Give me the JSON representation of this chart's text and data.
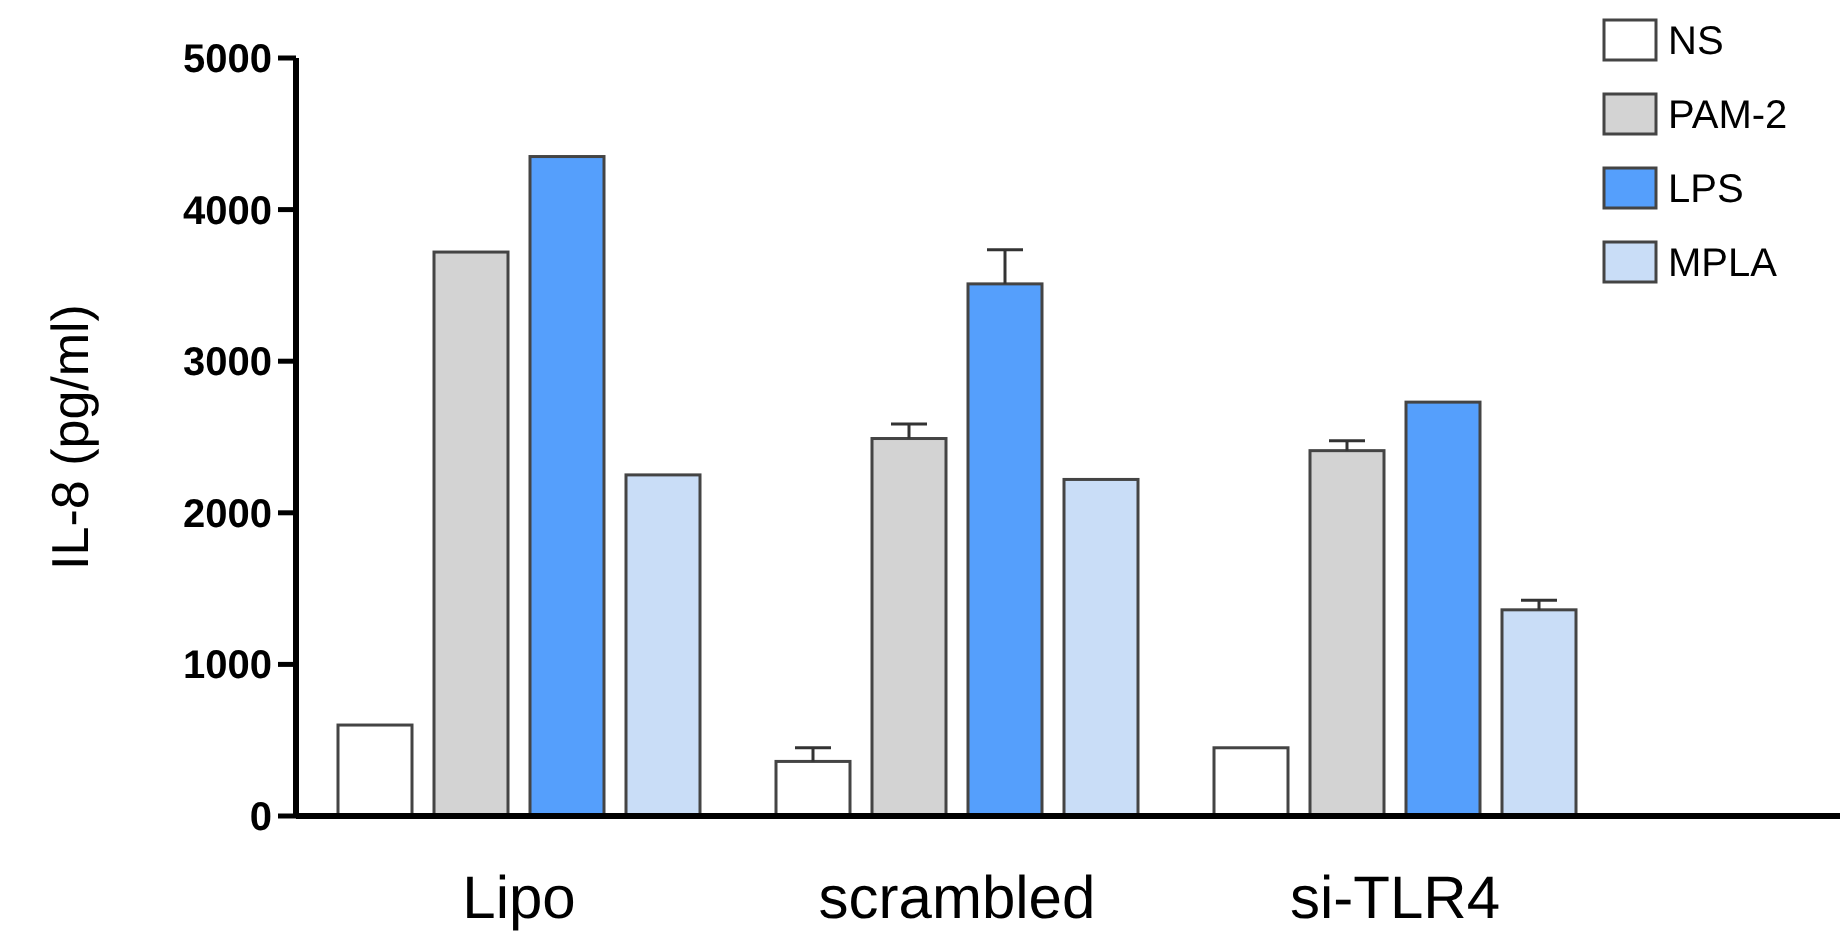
{
  "chart_data": {
    "type": "bar",
    "ylabel": "IL-8 (pg/ml)",
    "categories": [
      "Lipo",
      "scrambled",
      "si-TLR4"
    ],
    "series": [
      {
        "name": "NS",
        "color": "#ffffff",
        "values": [
          600,
          360,
          450
        ],
        "errors": [
          null,
          [
            360,
            450
          ],
          null
        ]
      },
      {
        "name": "PAM-2",
        "color": "#d3d3d3",
        "values": [
          3720,
          2490,
          2410
        ],
        "errors": [
          null,
          [
            2490,
            2585
          ],
          [
            2410,
            2475
          ]
        ]
      },
      {
        "name": "LPS",
        "color": "#559ffc",
        "values": [
          4350,
          3510,
          2730
        ],
        "errors": [
          null,
          [
            3510,
            3735
          ],
          null
        ]
      },
      {
        "name": "MPLA",
        "color": "#c9ddf7",
        "values": [
          2250,
          2220,
          1360
        ],
        "errors": [
          null,
          null,
          [
            1360,
            1423
          ]
        ]
      }
    ],
    "ylim": [
      0,
      5000
    ],
    "yticks": [
      0,
      1000,
      2000,
      3000,
      4000,
      5000
    ],
    "legend": "top right"
  }
}
